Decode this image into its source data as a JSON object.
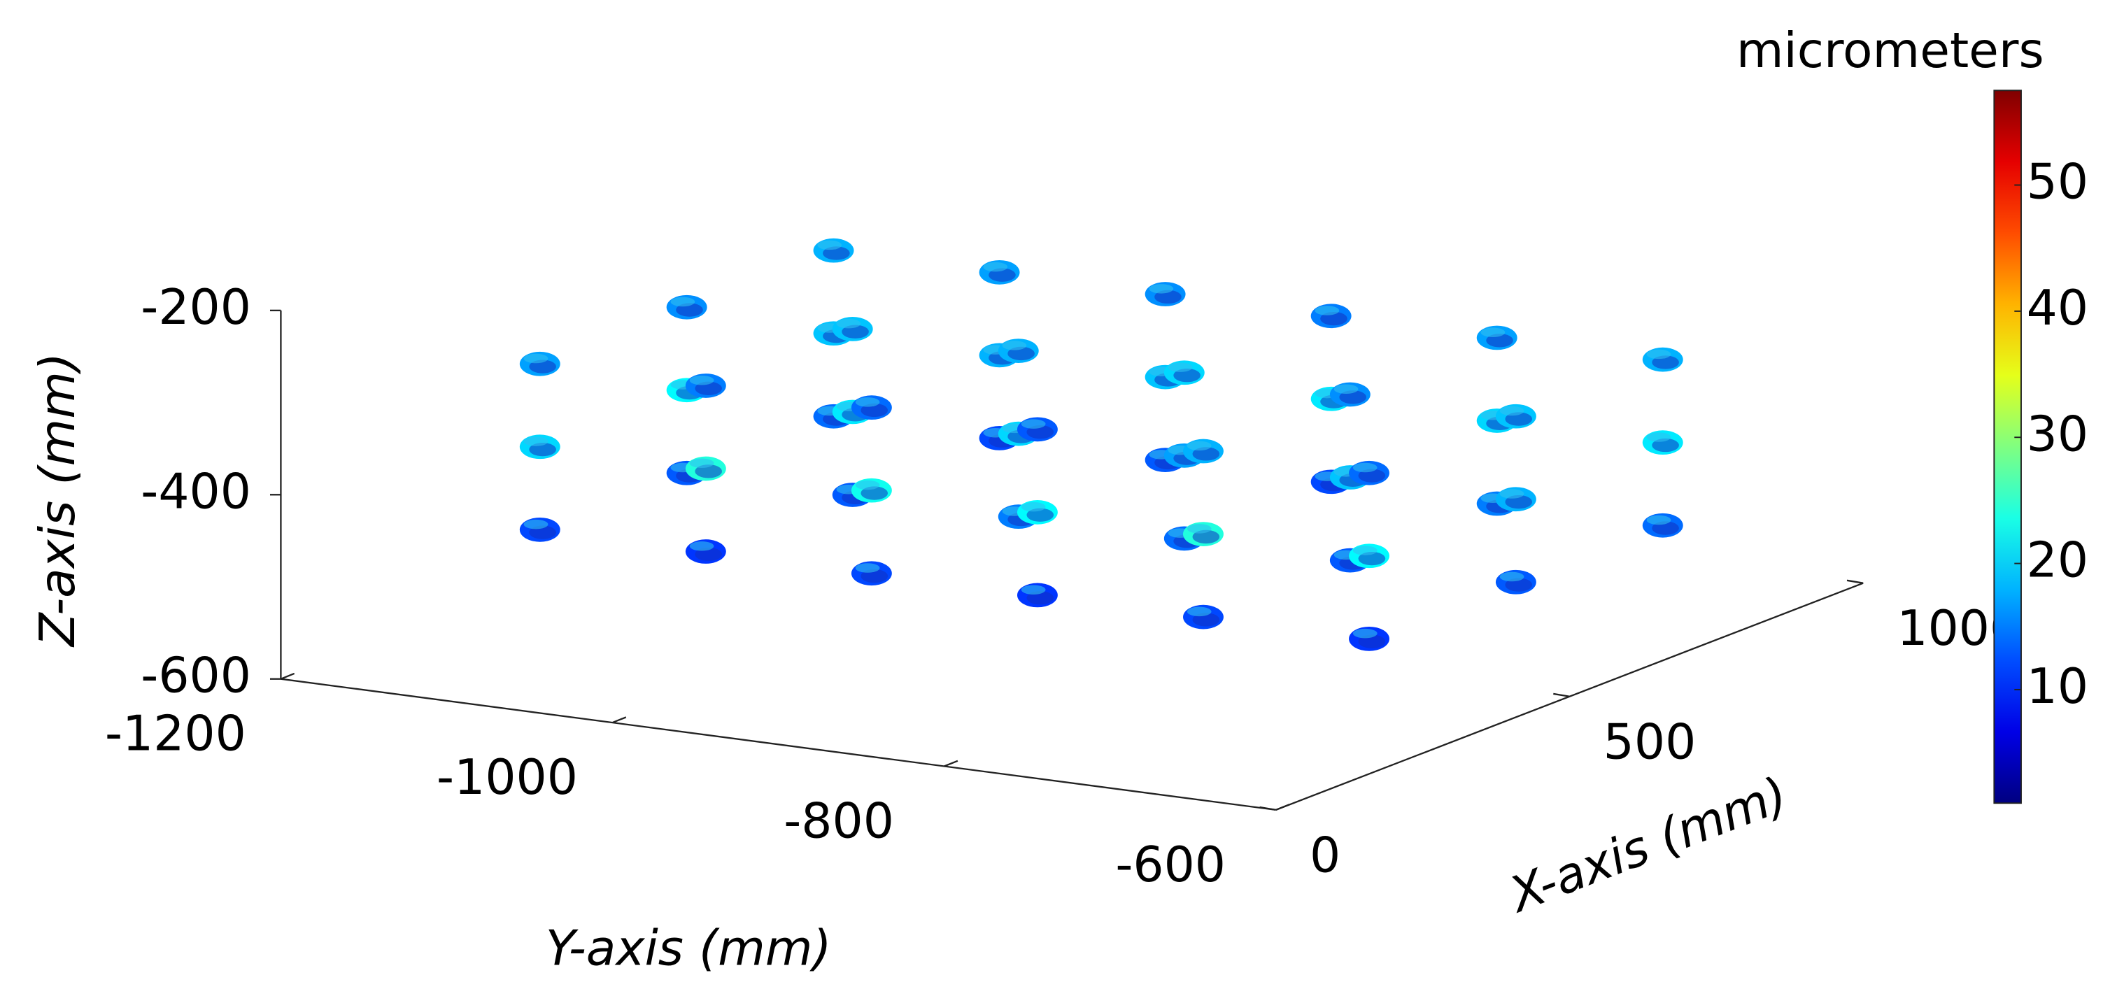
{
  "chart_data": {
    "type": "scatter3d",
    "xlabel": "X-axis (mm)",
    "ylabel": "Y-axis (mm)",
    "zlabel": "Z-axis (mm)",
    "xlim": [
      0,
      1000
    ],
    "xticks": [
      0,
      500,
      1000
    ],
    "ylim": [
      -1200,
      -600
    ],
    "yticks": [
      -1200,
      -1000,
      -800,
      -600
    ],
    "zlim": [
      -600,
      -200
    ],
    "zticks": [
      -200,
      -400,
      -600
    ],
    "colorbar": {
      "title": "micrometers",
      "colormap": "jet",
      "clim": [
        1,
        57.5
      ],
      "ticks": [
        10,
        20,
        30,
        40,
        50
      ]
    },
    "series": [
      {
        "x": [
          300,
          300,
          300,
          550,
          550,
          550,
          800,
          800,
          800,
          300,
          300,
          300,
          550,
          550,
          550,
          800,
          800,
          800,
          300,
          300,
          300,
          550,
          550,
          550,
          800,
          800,
          800,
          300,
          300,
          300,
          550,
          550,
          550,
          800,
          800,
          800,
          300,
          300,
          300,
          550,
          550,
          550,
          800,
          800,
          800,
          300,
          300,
          300,
          550,
          550,
          550,
          800,
          800,
          800
        ],
        "y": [
          -1150,
          -1150,
          -1150,
          -1150,
          -1150,
          -1150,
          -1150,
          -1150,
          -1150,
          -1050,
          -1050,
          -1050,
          -1050,
          -1050,
          -1050,
          -1050,
          -1050,
          -1050,
          -950,
          -950,
          -950,
          -950,
          -950,
          -950,
          -950,
          -950,
          -950,
          -850,
          -850,
          -850,
          -850,
          -850,
          -850,
          -850,
          -850,
          -850,
          -750,
          -750,
          -750,
          -750,
          -750,
          -750,
          -750,
          -750,
          -750,
          -650,
          -650,
          -650,
          -650,
          -650,
          -650,
          -650,
          -650,
          -650
        ],
        "z": [
          -320,
          -410,
          -500,
          -320,
          -410,
          -500,
          -320,
          -410,
          -500,
          -320,
          -410,
          -500,
          -320,
          -410,
          -500,
          -320,
          -410,
          -500,
          -320,
          -410,
          -500,
          -320,
          -410,
          -500,
          -320,
          -410,
          -500,
          -320,
          -410,
          -500,
          -320,
          -410,
          -500,
          -320,
          -410,
          -500,
          -320,
          -410,
          -500,
          -320,
          -410,
          -500,
          -320,
          -410,
          -500,
          -320,
          -410,
          -500,
          -320,
          -410,
          -500,
          -320,
          -410,
          -500
        ],
        "values": [
          17,
          20,
          12,
          16,
          22,
          13,
          18,
          19,
          14,
          15,
          24,
          11,
          19,
          21,
          13,
          17,
          18,
          12,
          14,
          23,
          12,
          18,
          20,
          15,
          16,
          19,
          13,
          13,
          22,
          11,
          20,
          17,
          14,
          15,
          21,
          12,
          18,
          24,
          12,
          16,
          19,
          13,
          17,
          20,
          15,
          14,
          22,
          11,
          19,
          18,
          13,
          18,
          21,
          14
        ]
      }
    ]
  }
}
